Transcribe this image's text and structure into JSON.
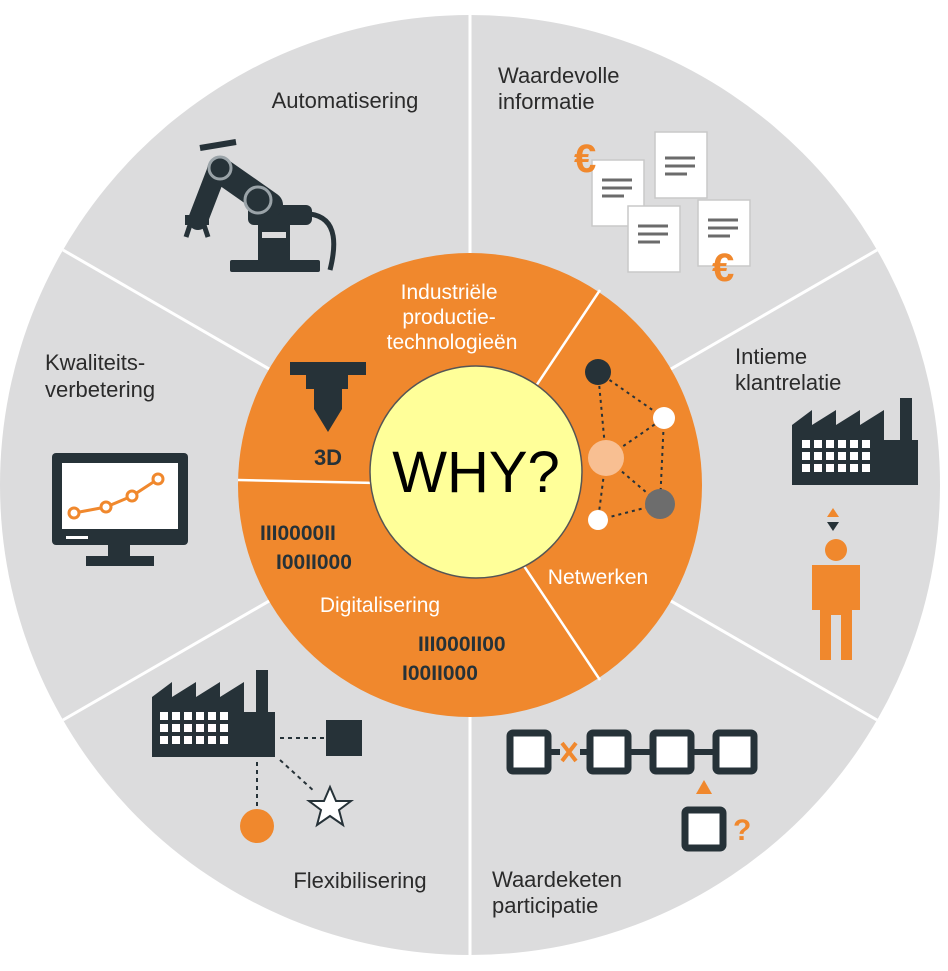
{
  "outer_segments": {
    "automatisering": {
      "label_lines": [
        "Automatisering"
      ],
      "icon": "robot-arm-icon"
    },
    "waardevolle_informatie": {
      "label_lines": [
        "Waardevolle",
        "informatie"
      ],
      "icon": "documents-icon"
    },
    "intieme_klantrelatie": {
      "label_lines": [
        "Intieme",
        "klantrelatie"
      ],
      "icon": "factory-customer-icon"
    },
    "waardeketen_participatie": {
      "label_lines": [
        "Waardeketen",
        "participatie"
      ],
      "icon": "value-chain-icon"
    },
    "flexibilisering": {
      "label_lines": [
        "Flexibilisering"
      ],
      "icon": "factory-network-icon"
    },
    "kwaliteitsverbetering": {
      "label_lines": [
        "Kwaliteits-",
        "verbetering"
      ],
      "icon": "monitor-chart-icon"
    }
  },
  "inner_segments": {
    "industriele": {
      "label_lines": [
        "Industriële",
        "productie-",
        "technologieën"
      ],
      "icon": "3d-printer-icon",
      "icon_text": "3D"
    },
    "netwerken": {
      "label": "Netwerken",
      "icon": "network-graph-icon"
    },
    "digitalisering": {
      "label": "Digitalisering",
      "binary_top": [
        "III0000II",
        "I00II000"
      ],
      "binary_bottom": [
        "III000II00",
        "I00II000"
      ]
    }
  },
  "center": {
    "label": "WHY?"
  },
  "symbols": {
    "euro": "€",
    "question": "?"
  },
  "colors": {
    "outer_ring": "#dcdcdd",
    "inner_ring": "#f0882d",
    "center": "#ffff99",
    "icon_dark": "#263238",
    "accent": "#f0882d"
  }
}
